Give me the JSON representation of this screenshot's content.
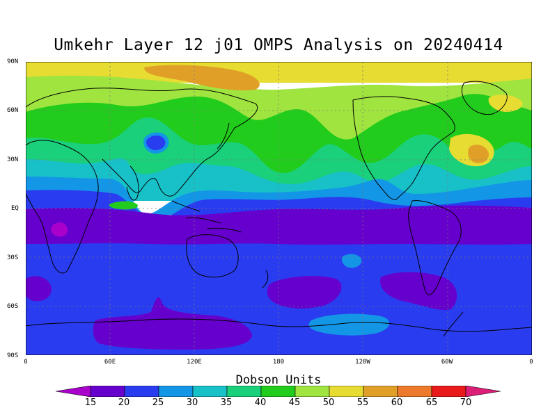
{
  "title": "Umkehr Layer 12 j01 OMPS Analysis on 20240414",
  "y_axis_labels": [
    "90N",
    "60N",
    "30N",
    "EQ",
    "30S",
    "60S",
    "90S"
  ],
  "x_axis_labels": [
    "0",
    "60E",
    "120E",
    "180",
    "120W",
    "60W",
    "0"
  ],
  "colorbar": {
    "title": "Dobson Units",
    "levels": [
      "15",
      "20",
      "25",
      "30",
      "35",
      "40",
      "45",
      "50",
      "55",
      "60",
      "65",
      "70"
    ],
    "colors": [
      "#aa00cc",
      "#6600cc",
      "#2a3cf0",
      "#1496e6",
      "#18c0c8",
      "#1ad07a",
      "#22cc1c",
      "#a0e440",
      "#e6dc32",
      "#e0a028",
      "#ec7a2a",
      "#e81a1a",
      "#dc1e78"
    ]
  },
  "map_colors": {
    "band_50_55": "#e6dc32",
    "band_45_50": "#a0e440",
    "band_40_45": "#22cc1c",
    "band_35_40": "#1ad07a",
    "band_30_35": "#18c0c8",
    "band_25_30": "#1496e6",
    "band_20_25": "#2a3cf0",
    "band_15_20": "#6600cc",
    "band_55_60": "#e0a028",
    "band_10_15": "#aa00cc"
  }
}
